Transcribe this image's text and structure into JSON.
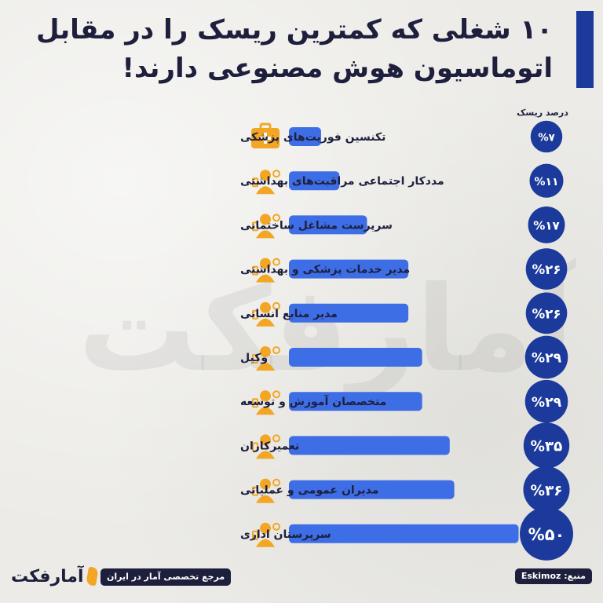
{
  "title": {
    "line1": "۱۰ شغلی که کمترین ریسک را در مقابل",
    "line2": "اتوماسیون هوش مصنوعی دارند!"
  },
  "risk_header": "درصد ریسک",
  "watermark": "آمارفکت",
  "colors": {
    "bar": "#3e6ee6",
    "circle": "#1b3a9b",
    "icon_tile": "#f3a623",
    "text": "#1e1f3d"
  },
  "chart_data": {
    "type": "bar",
    "orientation": "horizontal",
    "categories": [
      "تکنسین فوریت‌های پزشکی",
      "مددکار اجتماعی مراقبت‌های بهداشتی",
      "سرپرست مشاغل ساختمانی",
      "مدیر خدمات پزشکی و بهداشتی",
      "مدیر منابع انسانی",
      "وکیل",
      "متخصصان آموزش و توسعه",
      "تعمیرکاران",
      "مدیران عمومی و عملیاتی",
      "سرپرستان اداری"
    ],
    "values": [
      7,
      11,
      17,
      26,
      26,
      29,
      29,
      35,
      36,
      50
    ],
    "value_labels": [
      "%۷",
      "%۱۱",
      "%۱۷",
      "%۲۶",
      "%۲۶",
      "%۲۹",
      "%۲۹",
      "%۳۵",
      "%۳۶",
      "%۵۰"
    ],
    "icons": [
      "first-aid-kit-icon",
      "stethoscope-heart-icon",
      "construction-worker-icon",
      "medical-clipboard-icon",
      "hr-manager-icon",
      "scales-of-justice-icon",
      "training-presentation-icon",
      "repair-wrench-icon",
      "manager-gear-icon",
      "office-supervisor-icon"
    ],
    "xlim": [
      0,
      50
    ],
    "title": "۱۰ شغلی که کمترین ریسک را در مقابل اتوماسیون هوش مصنوعی دارند!",
    "xlabel": "",
    "ylabel": "درصد ریسک"
  },
  "footer": {
    "source": "منبع: Eskimoz",
    "tagline": "مرجع تخصصی آمار در ایران",
    "logo": "آمارفکت"
  }
}
